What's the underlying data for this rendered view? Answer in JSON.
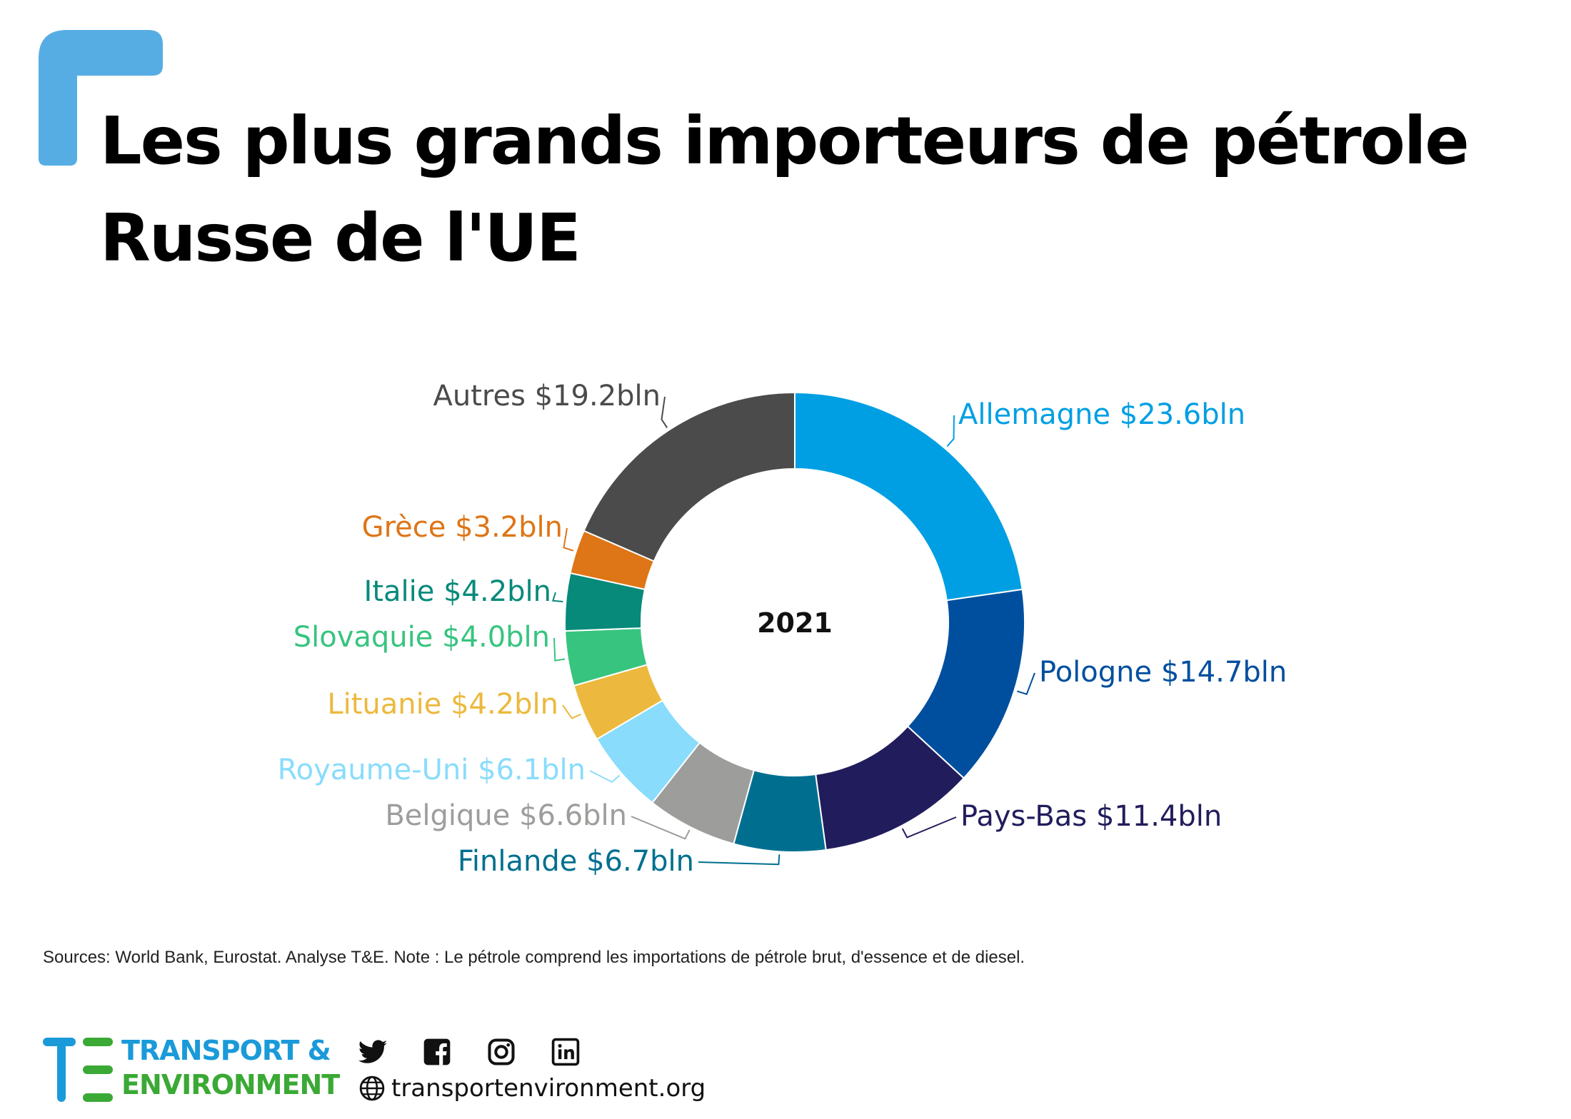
{
  "header": {
    "title_line1": "Les plus grands importeurs de pétrole",
    "title_line2": "Russe de l'UE",
    "accent_color": "#56ade3"
  },
  "chart_data": {
    "type": "pie",
    "center_label": "2021",
    "unit_prefix": "$",
    "unit_suffix": "bln",
    "slices": [
      {
        "label": "Allemagne",
        "value": 23.6,
        "color": "#009fe3"
      },
      {
        "label": "Pologne",
        "value": 14.7,
        "color": "#004f9e"
      },
      {
        "label": "Pays-Bas",
        "value": 11.4,
        "color": "#211d5c"
      },
      {
        "label": "Finlande",
        "value": 6.7,
        "color": "#006f8f"
      },
      {
        "label": "Belgique",
        "value": 6.6,
        "color": "#9d9d9c"
      },
      {
        "label": "Royaume-Uni",
        "value": 6.1,
        "color": "#89dcfc"
      },
      {
        "label": "Lituanie",
        "value": 4.2,
        "color": "#ecb93e"
      },
      {
        "label": "Slovaquie",
        "value": 4.0,
        "color": "#37c47f"
      },
      {
        "label": "Italie",
        "value": 4.2,
        "color": "#078a7a"
      },
      {
        "label": "Grèce",
        "value": 3.2,
        "color": "#de7516"
      },
      {
        "label": "Autres",
        "value": 19.2,
        "color": "#4b4b4b"
      }
    ],
    "data_labels": [
      "Allemagne $23.6bln",
      "Pologne $14.7bln",
      "Pays-Bas $11.4bln",
      "Finlande $6.7bln",
      "Belgique $6.6bln",
      "Royaume-Uni $6.1bln",
      "Lituanie $4.2bln",
      "Slovaquie $4.0bln",
      "Italie $4.2bln",
      "Grèce $3.2bln",
      "Autres $19.2bln"
    ]
  },
  "footer": {
    "sources": "Sources: World Bank, Eurostat. Analyse T&E.  Note : Le pétrole comprend les importations de pétrole brut, d'essence et de diesel.",
    "brand_line1": "TRANSPORT &",
    "brand_line2": "ENVIRONMENT",
    "brand_color_blue": "#1a9ad9",
    "brand_color_green": "#3aa935",
    "website": "transportenvironment.org",
    "social_icons": [
      "twitter-icon",
      "facebook-icon",
      "instagram-icon",
      "linkedin-icon"
    ],
    "site_icon": "globe-icon"
  }
}
